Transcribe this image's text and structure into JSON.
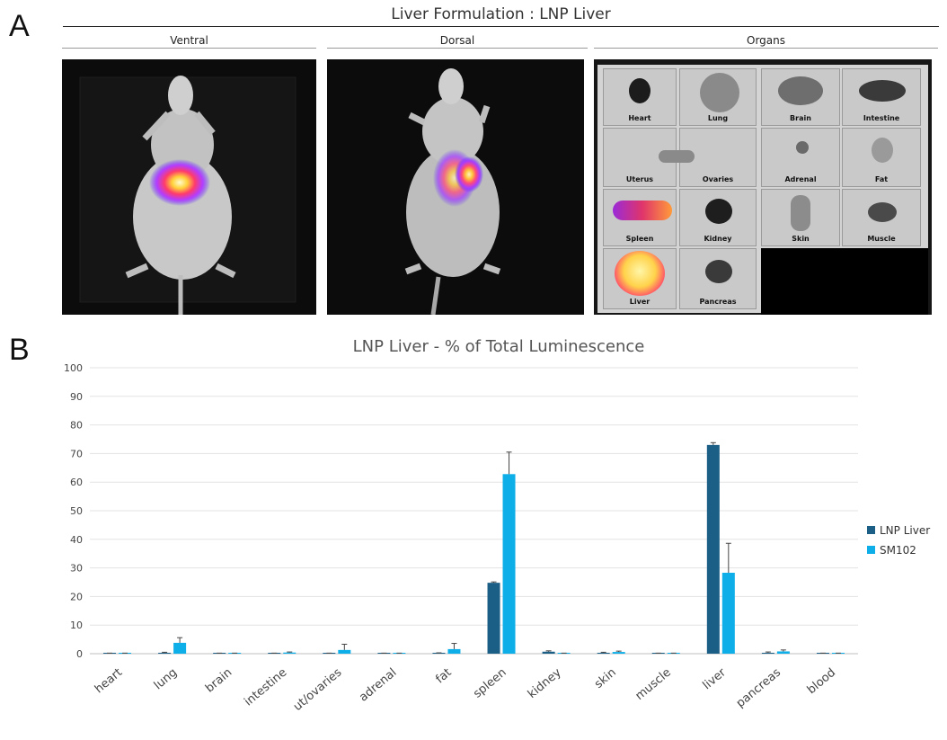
{
  "panels": {
    "a_label": "A",
    "b_label": "B"
  },
  "section_a": {
    "title": "Liver Formulation : LNP Liver",
    "images": [
      {
        "label": "Ventral"
      },
      {
        "label": "Dorsal"
      },
      {
        "label": "Organs"
      }
    ],
    "organ_labels": [
      "Heart",
      "Lung",
      "Brain",
      "Intestine",
      "Uterus",
      "Ovaries",
      "Adrenal",
      "Fat",
      "Spleen",
      "Kidney",
      "Skin",
      "Muscle",
      "Liver",
      "Pancreas"
    ]
  },
  "chart_data": {
    "type": "bar",
    "title": "LNP Liver - % of Total Luminescence",
    "xlabel": "",
    "ylabel": "",
    "ylim": [
      0,
      100
    ],
    "yticks": [
      0,
      10,
      20,
      30,
      40,
      50,
      60,
      70,
      80,
      90,
      100
    ],
    "grid": true,
    "legend_position": "right",
    "categories": [
      "heart",
      "lung",
      "brain",
      "intestine",
      "ut/ovaries",
      "adrenal",
      "fat",
      "spleen",
      "kidney",
      "skin",
      "muscle",
      "liver",
      "pancreas",
      "blood"
    ],
    "series": [
      {
        "name": "LNP Liver",
        "color": "#1b5e86",
        "values": [
          0.1,
          0.3,
          0.1,
          0.1,
          0.1,
          0.1,
          0.2,
          24.8,
          0.7,
          0.3,
          0.1,
          73.0,
          0.3,
          0.1
        ],
        "errors": [
          0.1,
          0.2,
          0.1,
          0.1,
          0.1,
          0.1,
          0.1,
          0.3,
          0.3,
          0.2,
          0.1,
          0.8,
          0.3,
          0.1
        ]
      },
      {
        "name": "SM102",
        "color": "#0eaee8",
        "values": [
          0.1,
          3.8,
          0.1,
          0.4,
          1.3,
          0.1,
          1.6,
          62.8,
          0.1,
          0.6,
          0.1,
          28.3,
          0.8,
          0.1
        ],
        "errors": [
          0.1,
          1.8,
          0.1,
          0.2,
          2.0,
          0.1,
          2.0,
          7.7,
          0.1,
          0.3,
          0.1,
          10.3,
          0.5,
          0.1
        ]
      }
    ]
  }
}
